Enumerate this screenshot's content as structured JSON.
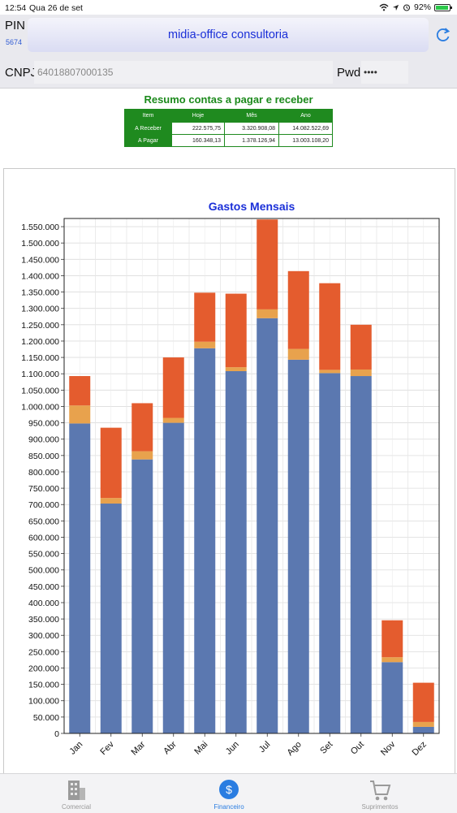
{
  "status_bar": {
    "time": "12:54",
    "date": "Qua 26 de set",
    "battery": "92%"
  },
  "header": {
    "pin_label": "PIN",
    "pin_value": "5674",
    "company": "midia-office consultoria",
    "cnpj_label": "CNPJ",
    "cnpj_value": "64018807000135",
    "pwd_label": "Pwd",
    "pwd_value": "••••"
  },
  "summary": {
    "title": "Resumo contas a pagar e receber",
    "columns": [
      "Item",
      "Hoje",
      "Mês",
      "Ano"
    ],
    "rows": [
      [
        "A Receber",
        "222.575,75",
        "3.320.908,08",
        "14.082.522,69"
      ],
      [
        "A Pagar",
        "160.348,13",
        "1.378.126,94",
        "13.003.108,20"
      ]
    ]
  },
  "chart_data": {
    "type": "bar",
    "stacked": true,
    "title": "Gastos Mensais",
    "categories": [
      "Jan",
      "Fev",
      "Mar",
      "Abr",
      "Mai",
      "Jun",
      "Jul",
      "Ago",
      "Set",
      "Out",
      "Nov",
      "Dez"
    ],
    "series": [
      {
        "color": "#5b78b0",
        "values": [
          948000,
          703000,
          838000,
          950000,
          1178000,
          1108000,
          1270000,
          1143000,
          1102000,
          1093000,
          218000,
          20000
        ]
      },
      {
        "color": "#e8a24d",
        "values": [
          55000,
          17000,
          25000,
          15000,
          20000,
          12000,
          27000,
          33000,
          10000,
          20000,
          15000,
          15000
        ]
      },
      {
        "color": "#e45c2e",
        "values": [
          90000,
          215000,
          147000,
          185000,
          150000,
          225000,
          275000,
          238000,
          265000,
          137000,
          113000,
          120000
        ]
      }
    ],
    "ylim": [
      0,
      1550000
    ],
    "yticks": [
      "0",
      "50.000",
      "100.000",
      "150.000",
      "200.000",
      "250.000",
      "300.000",
      "350.000",
      "400.000",
      "450.000",
      "500.000",
      "550.000",
      "600.000",
      "650.000",
      "700.000",
      "750.000",
      "800.000",
      "850.000",
      "900.000",
      "950.000",
      "1.000.000",
      "1.050.000",
      "1.100.000",
      "1.150.000",
      "1.200.000",
      "1.250.000",
      "1.300.000",
      "1.350.000",
      "1.400.000",
      "1.450.000",
      "1.500.000",
      "1.550.000"
    ],
    "grid": true
  },
  "tabs": [
    {
      "label": "Comercial",
      "icon": "building-icon",
      "active": false
    },
    {
      "label": "Financeiro",
      "icon": "dollar-icon",
      "active": true
    },
    {
      "label": "Suprimentos",
      "icon": "cart-icon",
      "active": false
    }
  ],
  "colors": {
    "accent": "#2a7de1",
    "summary_green": "#1f8a1f",
    "title_blue": "#1a2fd8"
  }
}
